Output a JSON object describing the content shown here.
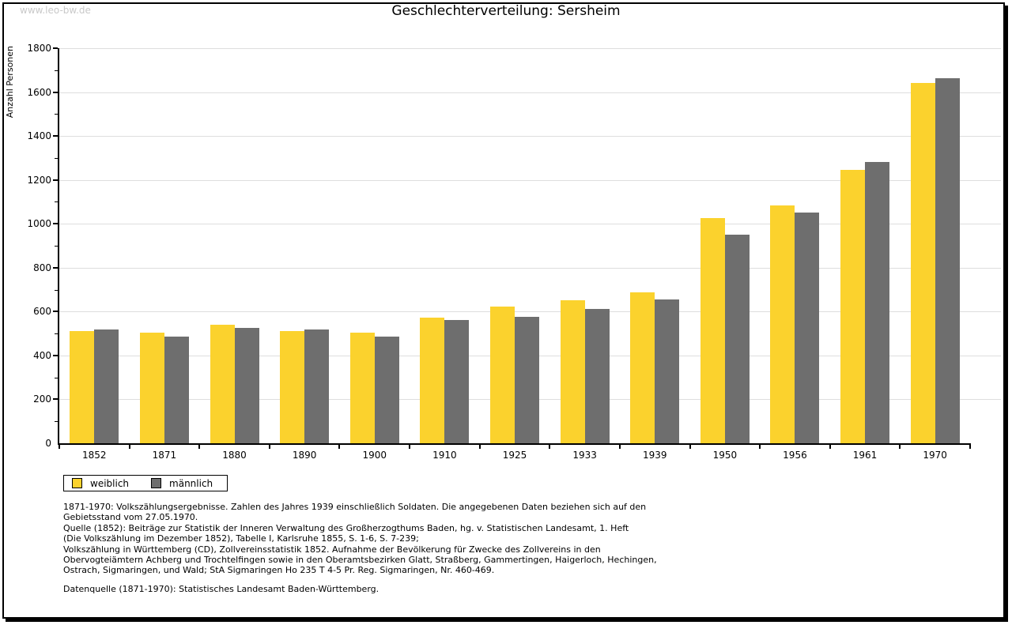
{
  "watermark": "www.leo-bw.de",
  "chart_data": {
    "type": "bar",
    "title": "Geschlechterverteilung: Sersheim",
    "xlabel": "",
    "ylabel": "Anzahl Personen",
    "ylim": [
      0,
      1800
    ],
    "ytick_step": 200,
    "ytick_minor_step": 100,
    "grid": true,
    "legend_position": "bottom-left",
    "categories": [
      "1852",
      "1871",
      "1880",
      "1890",
      "1900",
      "1910",
      "1925",
      "1933",
      "1939",
      "1950",
      "1956",
      "1961",
      "1970"
    ],
    "series": [
      {
        "name": "weiblich",
        "color": "#FBD22D",
        "values": [
          510,
          505,
          540,
          510,
          505,
          572,
          622,
          650,
          686,
          1025,
          1082,
          1247,
          1640
        ]
      },
      {
        "name": "männlich",
        "color": "#6E6E6E",
        "values": [
          520,
          485,
          526,
          519,
          487,
          562,
          577,
          611,
          654,
          950,
          1050,
          1280,
          1665
        ]
      }
    ]
  },
  "footnotes": {
    "lines": [
      "1871-1970: Volkszählungsergebnisse. Zahlen des Jahres 1939 einschließlich Soldaten. Die angegebenen Daten beziehen sich auf den",
      "Gebietsstand vom 27.05.1970.",
      "Quelle (1852): Beiträge zur Statistik der Inneren Verwaltung des Großherzogthums Baden, hg. v. Statistischen Landesamt, 1. Heft",
      "(Die Volkszählung im Dezember 1852), Tabelle I, Karlsruhe 1855, S. 1-6, S. 7-239;",
      "Volkszählung in Württemberg (CD), Zollvereinsstatistik 1852. Aufnahme der Bevölkerung für Zwecke des Zollvereins in den",
      "Obervogteiämtern Achberg und Trochtelfingen sowie in den Oberamtsbezirken Glatt, Straßberg, Gammertingen, Haigerloch, Hechingen,",
      "Ostrach, Sigmaringen, und Wald; StA Sigmaringen Ho 235 T 4-5 Pr. Reg. Sigmaringen, Nr. 460-469."
    ],
    "source": "Datenquelle (1871-1970): Statistisches Landesamt Baden-Württemberg."
  },
  "colors": {
    "grid": "#DEDEDE",
    "axis": "#000000",
    "watermark": "#C9C9C9",
    "background": "#FFFFFF"
  }
}
